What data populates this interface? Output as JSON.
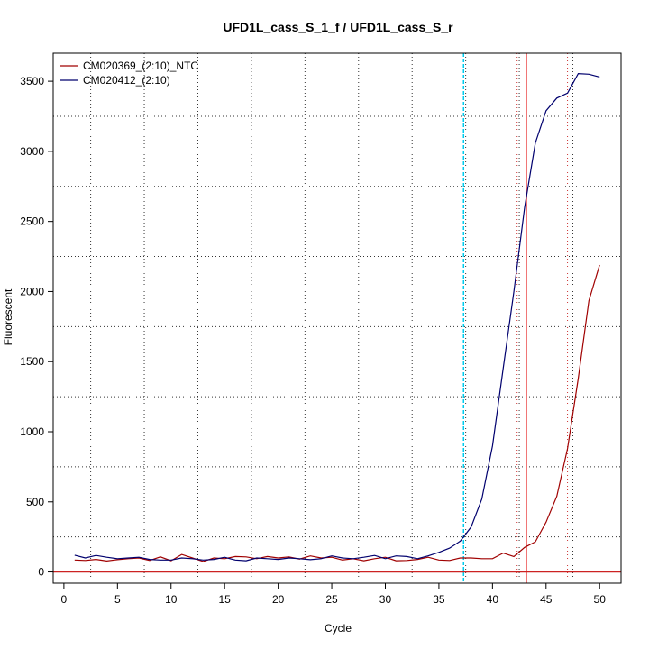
{
  "chart_data": {
    "type": "line",
    "title": "UFD1L_cass_S_1_f / UFD1L_cass_S_r",
    "xlabel": "Cycle",
    "ylabel": "Fluorescent",
    "xlim": [
      -1,
      52
    ],
    "ylim": [
      -80,
      3700
    ],
    "x_ticks": [
      0,
      5,
      10,
      15,
      20,
      25,
      30,
      35,
      40,
      45,
      50
    ],
    "y_ticks": [
      0,
      500,
      1000,
      1500,
      2000,
      2500,
      3000,
      3500
    ],
    "grid": true,
    "legend_position": "top-left",
    "threshold_value": 0,
    "threshold_color": "#cc2222",
    "vertical_markers": [
      {
        "x": 37.3,
        "color": "#00ccee",
        "style": "dashed"
      },
      {
        "x": 43.2,
        "color": "#ee6666",
        "style": "solid"
      },
      {
        "x": 42.3,
        "color": "#cc3333",
        "style": "dotted"
      },
      {
        "x": 47.0,
        "color": "#cc3333",
        "style": "dotted"
      }
    ],
    "series": [
      {
        "name": "CM020369_(2:10)_NTC",
        "color": "#a00000",
        "x": [
          1,
          2,
          3,
          4,
          5,
          6,
          7,
          8,
          9,
          10,
          11,
          12,
          13,
          14,
          15,
          16,
          17,
          18,
          19,
          20,
          21,
          22,
          23,
          24,
          25,
          26,
          27,
          28,
          29,
          30,
          31,
          32,
          33,
          34,
          35,
          36,
          37,
          38,
          39,
          40,
          41,
          42,
          43,
          44,
          45,
          46,
          47,
          48,
          49,
          50
        ],
        "values": [
          85,
          82,
          90,
          78,
          88,
          95,
          100,
          82,
          108,
          80,
          125,
          100,
          75,
          100,
          95,
          110,
          108,
          95,
          110,
          100,
          108,
          92,
          115,
          100,
          105,
          85,
          95,
          80,
          95,
          105,
          80,
          82,
          90,
          105,
          85,
          82,
          100,
          100,
          95,
          95,
          135,
          110,
          175,
          215,
          355,
          540,
          880,
          1380,
          1935,
          2190
        ]
      },
      {
        "name": "CM020412_(2:10)",
        "color": "#00006e",
        "x": [
          1,
          2,
          3,
          4,
          5,
          6,
          7,
          8,
          9,
          10,
          11,
          12,
          13,
          14,
          15,
          16,
          17,
          18,
          19,
          20,
          21,
          22,
          23,
          24,
          25,
          26,
          27,
          28,
          29,
          30,
          31,
          32,
          33,
          34,
          35,
          36,
          37,
          38,
          39,
          40,
          41,
          42,
          43,
          44,
          45,
          46,
          47,
          48,
          49,
          50
        ],
        "values": [
          120,
          100,
          118,
          105,
          95,
          100,
          105,
          90,
          85,
          85,
          100,
          95,
          85,
          90,
          105,
          85,
          80,
          100,
          95,
          90,
          100,
          95,
          88,
          95,
          115,
          100,
          95,
          105,
          118,
          95,
          115,
          110,
          95,
          115,
          140,
          170,
          220,
          320,
          520,
          900,
          1450,
          2000,
          2600,
          3060,
          3290,
          3380,
          3415,
          3555,
          3550,
          3530
        ]
      }
    ]
  }
}
